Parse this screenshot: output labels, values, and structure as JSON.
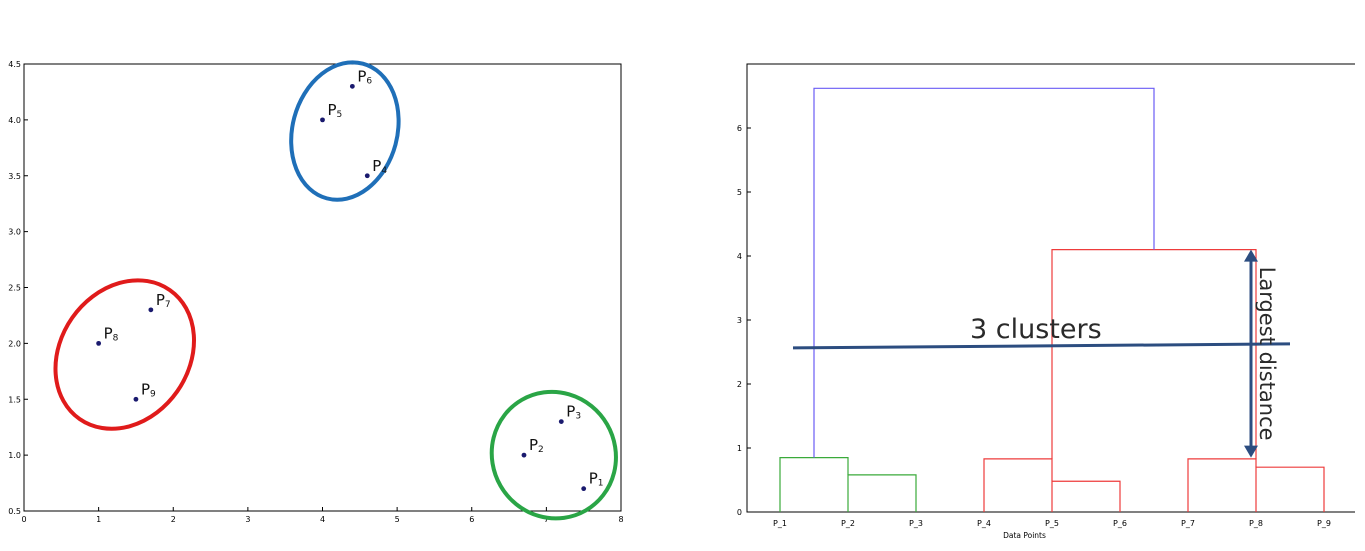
{
  "colors": {
    "point": "#1a1a6e",
    "ring_blue": "#1f6fb8",
    "ring_red": "#e01b1b",
    "ring_green": "#2aa546",
    "dendro_blue": "#6a5cf5",
    "dendro_red": "#ee3b3b",
    "dendro_green": "#3aaa3a",
    "cut_line": "#2c4d80",
    "arrow": "#2c4d80"
  },
  "chart_data": [
    {
      "type": "scatter",
      "xlim": [
        0,
        8
      ],
      "ylim": [
        0.5,
        4.5
      ],
      "x_ticks": [
        "0",
        "1",
        "2",
        "3",
        "4",
        "5",
        "6",
        "7",
        "8"
      ],
      "y_ticks": [
        "0.5",
        "1.0",
        "1.5",
        "2.0",
        "2.5",
        "3.0",
        "3.5",
        "4.0",
        "4.5"
      ],
      "points": [
        {
          "name": "P",
          "sub": "1",
          "x": 7.5,
          "y": 0.7
        },
        {
          "name": "P",
          "sub": "2",
          "x": 6.7,
          "y": 1.0
        },
        {
          "name": "P",
          "sub": "3",
          "x": 7.2,
          "y": 1.3
        },
        {
          "name": "P",
          "sub": "4",
          "x": 4.6,
          "y": 3.5
        },
        {
          "name": "P",
          "sub": "5",
          "x": 4.0,
          "y": 4.0
        },
        {
          "name": "P",
          "sub": "6",
          "x": 4.4,
          "y": 4.3
        },
        {
          "name": "P",
          "sub": "7",
          "x": 1.7,
          "y": 2.3
        },
        {
          "name": "P",
          "sub": "8",
          "x": 1.0,
          "y": 2.0
        },
        {
          "name": "P",
          "sub": "9",
          "x": 1.5,
          "y": 1.5
        }
      ],
      "cluster_rings": [
        {
          "color_key": "ring_blue",
          "members": [
            "4",
            "5",
            "6"
          ]
        },
        {
          "color_key": "ring_red",
          "members": [
            "7",
            "8",
            "9"
          ]
        },
        {
          "color_key": "ring_green",
          "members": [
            "1",
            "2",
            "3"
          ]
        }
      ]
    },
    {
      "type": "dendrogram",
      "xlabel": "Data Points",
      "ylim": [
        0,
        7
      ],
      "y_ticks": [
        "0",
        "1",
        "2",
        "3",
        "4",
        "5",
        "6"
      ],
      "leaves": [
        "P_1",
        "P_2",
        "P_3",
        "P_4",
        "P_5",
        "P_6",
        "P_7",
        "P_8",
        "P_9"
      ],
      "merges": [
        {
          "left": 0,
          "right": 1,
          "left_h": 0,
          "right_h": 0.58,
          "height": 0.85,
          "color_key": "dendro_green"
        },
        {
          "left": 1,
          "right": 2,
          "left_h": 0,
          "right_h": 0,
          "height": 0.58,
          "color_key": "dendro_green"
        },
        {
          "left": 3,
          "right": 4,
          "left_h": 0,
          "right_h": 0.48,
          "height": 0.83,
          "color_key": "dendro_red"
        },
        {
          "left": 4,
          "right": 5,
          "left_h": 0,
          "right_h": 0,
          "height": 0.48,
          "color_key": "dendro_red"
        },
        {
          "left": 6,
          "right": 7,
          "left_h": 0,
          "right_h": 0.7,
          "height": 0.83,
          "color_key": "dendro_red"
        },
        {
          "left": 7,
          "right": 8,
          "left_h": 0,
          "right_h": 0,
          "height": 0.7,
          "color_key": "dendro_red"
        },
        {
          "left": 4,
          "right": 7,
          "left_h": 0.83,
          "right_h": 0.83,
          "height": 4.1,
          "color_key": "dendro_red"
        },
        {
          "left": 0.5,
          "right": 5.5,
          "left_h": 0.85,
          "right_h": 4.1,
          "height": 6.62,
          "color_key": "dendro_blue"
        }
      ],
      "cut_height": 2.58,
      "cut_label": "3 clusters",
      "distance_label": "Largest distance",
      "distance_span": [
        0.85,
        4.1
      ]
    }
  ]
}
